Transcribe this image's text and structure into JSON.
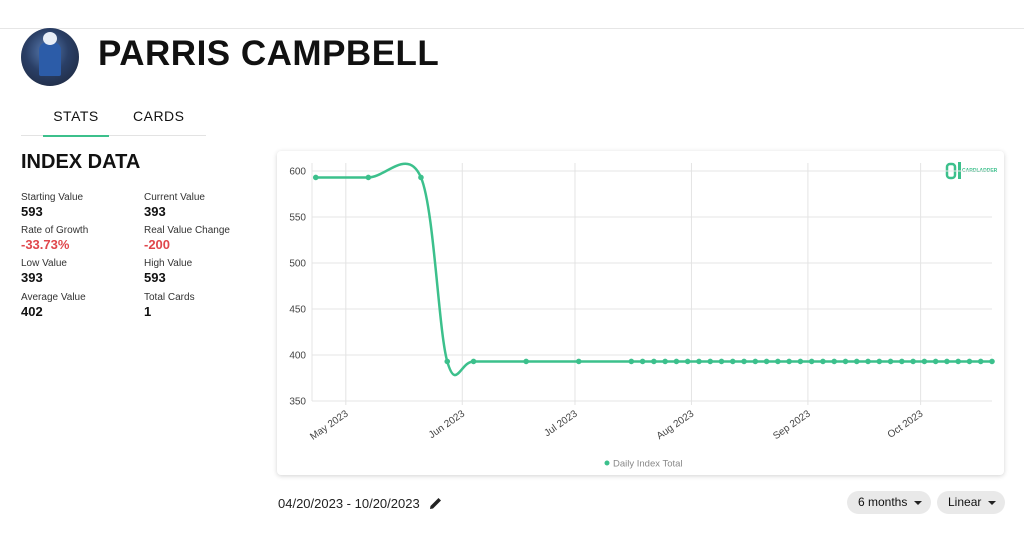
{
  "header": {
    "name": "PARRIS CAMPBELL"
  },
  "tabs": [
    "STATS",
    "CARDS"
  ],
  "section_title": "INDEX DATA",
  "stats": [
    {
      "label": "Starting Value",
      "value": "593"
    },
    {
      "label": "Current Value",
      "value": "393"
    },
    {
      "label": "Rate of Growth",
      "value": "-33.73%"
    },
    {
      "label": "Real Value Change",
      "value": "-200"
    },
    {
      "label": "Low Value",
      "value": "393"
    },
    {
      "label": "High Value",
      "value": "593"
    },
    {
      "label": "Average Value",
      "value": "402"
    },
    {
      "label": "Total Cards",
      "value": "1"
    }
  ],
  "logo": "CARDLADDER",
  "chart_data": {
    "type": "line",
    "x": [
      "2023-04-23",
      "2023-05-07",
      "2023-05-21",
      "2023-05-28",
      "2023-06-04",
      "2023-06-18",
      "2023-07-02",
      "2023-07-16",
      "2023-07-19",
      "2023-07-22",
      "2023-07-25",
      "2023-07-28",
      "2023-07-31",
      "2023-08-03",
      "2023-08-06",
      "2023-08-09",
      "2023-08-12",
      "2023-08-15",
      "2023-08-18",
      "2023-08-21",
      "2023-08-24",
      "2023-08-27",
      "2023-08-30",
      "2023-09-02",
      "2023-09-05",
      "2023-09-08",
      "2023-09-11",
      "2023-09-14",
      "2023-09-17",
      "2023-09-20",
      "2023-09-23",
      "2023-09-26",
      "2023-09-29",
      "2023-10-02",
      "2023-10-05",
      "2023-10-08",
      "2023-10-11",
      "2023-10-14",
      "2023-10-17",
      "2023-10-20"
    ],
    "series": [
      {
        "name": "Daily Index Total",
        "color": "#3cc08c",
        "values": [
          593,
          593,
          593,
          393,
          393,
          393,
          393,
          393,
          393,
          393,
          393,
          393,
          393,
          393,
          393,
          393,
          393,
          393,
          393,
          393,
          393,
          393,
          393,
          393,
          393,
          393,
          393,
          393,
          393,
          393,
          393,
          393,
          393,
          393,
          393,
          393,
          393,
          393,
          393,
          393
        ]
      }
    ],
    "xlim": [
      "2023-04-22",
      "2023-10-20"
    ],
    "xticks": [
      {
        "value": "2023-05-01",
        "label": "May 2023"
      },
      {
        "value": "2023-06-01",
        "label": "Jun 2023"
      },
      {
        "value": "2023-07-01",
        "label": "Jul 2023"
      },
      {
        "value": "2023-08-01",
        "label": "Aug 2023"
      },
      {
        "value": "2023-09-01",
        "label": "Sep 2023"
      },
      {
        "value": "2023-10-01",
        "label": "Oct 2023"
      }
    ],
    "ylim": [
      350,
      600
    ],
    "yticks": [
      350,
      400,
      450,
      500,
      550,
      600
    ],
    "grid": true,
    "legend": "bottom"
  },
  "controls": {
    "date_range": "04/20/2023 - 10/20/2023",
    "period": "6 months",
    "scale": "Linear"
  }
}
